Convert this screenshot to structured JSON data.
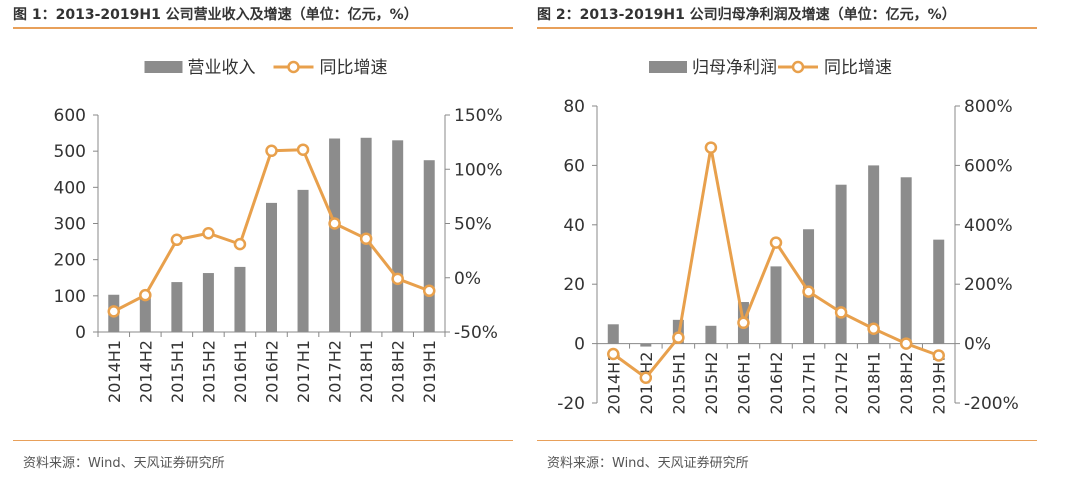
{
  "chart_data": [
    {
      "type": "bar",
      "title": "图 1：2013-2019H1 公司营业收入及增速（单位：亿元，%）",
      "source": "资料来源：Wind、天风证券研究所",
      "categories": [
        "2014H1",
        "2014H2",
        "2015H1",
        "2015H2",
        "2016H1",
        "2016H2",
        "2017H1",
        "2017H2",
        "2018H1",
        "2018H2",
        "2019H1"
      ],
      "series": [
        {
          "name": "营业收入",
          "type": "bar",
          "axis": "left",
          "values": [
            103,
            107,
            138,
            163,
            180,
            357,
            393,
            535,
            537,
            530,
            475
          ]
        },
        {
          "name": "同比增速",
          "type": "line",
          "axis": "right",
          "values": [
            -31,
            -16,
            35,
            41,
            31,
            117,
            118,
            50,
            36,
            -1,
            -12
          ]
        }
      ],
      "left_axis": {
        "min": 0,
        "max": 600,
        "step": 100,
        "ticks": [
          "0",
          "100",
          "200",
          "300",
          "400",
          "500",
          "600"
        ]
      },
      "right_axis": {
        "min": -50,
        "max": 150,
        "step": 50,
        "ticks": [
          "-50%",
          "0%",
          "50%",
          "100%",
          "150%"
        ]
      },
      "legend_position": "top-center",
      "bar_color": "#8c8c8c",
      "line_color": "#e8a04c"
    },
    {
      "type": "bar",
      "title": "图 2：2013-2019H1 公司归母净利润及增速（单位：亿元，%）",
      "source": "资料来源：Wind、天风证券研究所",
      "categories": [
        "2014H1",
        "2014H2",
        "2015H1",
        "2015H2",
        "2016H1",
        "2016H2",
        "2017H1",
        "2017H2",
        "2018H1",
        "2018H2",
        "2019H1"
      ],
      "series": [
        {
          "name": "归母净利润",
          "type": "bar",
          "axis": "left",
          "values": [
            6.5,
            -1,
            8,
            6,
            14,
            26,
            38.5,
            53.5,
            60,
            56,
            35
          ]
        },
        {
          "name": "同比增速",
          "type": "line",
          "axis": "right",
          "values": [
            -35,
            -115,
            20,
            660,
            70,
            340,
            175,
            105,
            50,
            0,
            -40
          ]
        }
      ],
      "left_axis": {
        "min": -20,
        "max": 80,
        "step": 20,
        "ticks": [
          "-20",
          "0",
          "20",
          "40",
          "60",
          "80"
        ]
      },
      "right_axis": {
        "min": -200,
        "max": 800,
        "step": 200,
        "ticks": [
          "-200%",
          "0%",
          "200%",
          "400%",
          "600%",
          "800%"
        ]
      },
      "legend_position": "top-center",
      "bar_color": "#8c8c8c",
      "line_color": "#e8a04c"
    }
  ]
}
